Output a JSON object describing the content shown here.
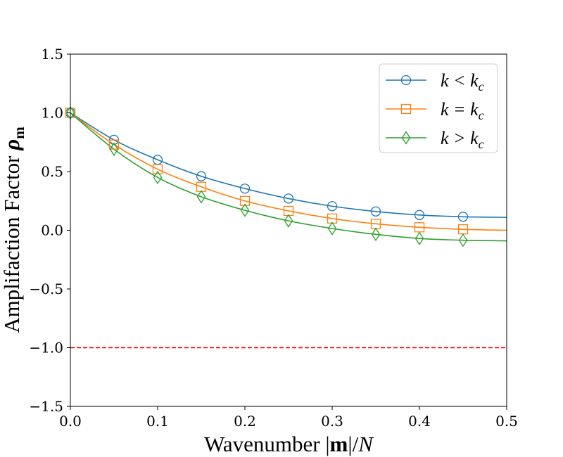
{
  "chart_data": {
    "type": "line",
    "xlabel": "Wavenumber |m|/N",
    "ylabel": "Amplifaction Factor ρm",
    "xlim": [
      0.0,
      0.5
    ],
    "ylim": [
      -1.5,
      1.5
    ],
    "xticks": [
      0.0,
      0.1,
      0.2,
      0.3,
      0.4,
      0.5
    ],
    "xtick_labels": [
      "0.0",
      "0.1",
      "0.2",
      "0.3",
      "0.4",
      "0.5"
    ],
    "yticks": [
      -1.5,
      -1.0,
      -0.5,
      0.0,
      0.5,
      1.0,
      1.5
    ],
    "ytick_labels": [
      "−1.5",
      "−1.0",
      "−0.5",
      "0.0",
      "0.5",
      "1.0",
      "1.5"
    ],
    "grid": false,
    "legend_position": "top-right",
    "marker_x": [
      0.0,
      0.05,
      0.1,
      0.15,
      0.2,
      0.25,
      0.3,
      0.35,
      0.4,
      0.45
    ],
    "series": [
      {
        "name": "k < kc",
        "color": "#1f77b4",
        "marker": "circle",
        "x": [
          0.0,
          0.05,
          0.1,
          0.15,
          0.2,
          0.25,
          0.3,
          0.35,
          0.4,
          0.45,
          0.5
        ],
        "values": [
          1.0,
          0.77,
          0.6,
          0.46,
          0.355,
          0.27,
          0.205,
          0.16,
          0.13,
          0.115,
          0.11
        ]
      },
      {
        "name": "k = kc",
        "color": "#ff7f0e",
        "marker": "square",
        "x": [
          0.0,
          0.05,
          0.1,
          0.15,
          0.2,
          0.25,
          0.3,
          0.35,
          0.4,
          0.45,
          0.5
        ],
        "values": [
          1.0,
          0.73,
          0.52,
          0.37,
          0.25,
          0.165,
          0.1,
          0.055,
          0.025,
          0.008,
          0.0
        ]
      },
      {
        "name": "k > kc",
        "color": "#2ca02c",
        "marker": "diamond",
        "x": [
          0.0,
          0.05,
          0.1,
          0.15,
          0.2,
          0.25,
          0.3,
          0.35,
          0.4,
          0.45,
          0.5
        ],
        "values": [
          1.0,
          0.69,
          0.45,
          0.285,
          0.17,
          0.08,
          0.015,
          -0.035,
          -0.07,
          -0.085,
          -0.09
        ]
      }
    ],
    "reference_line": {
      "y": -1.0,
      "color": "#ff0000",
      "style": "dashed"
    }
  }
}
